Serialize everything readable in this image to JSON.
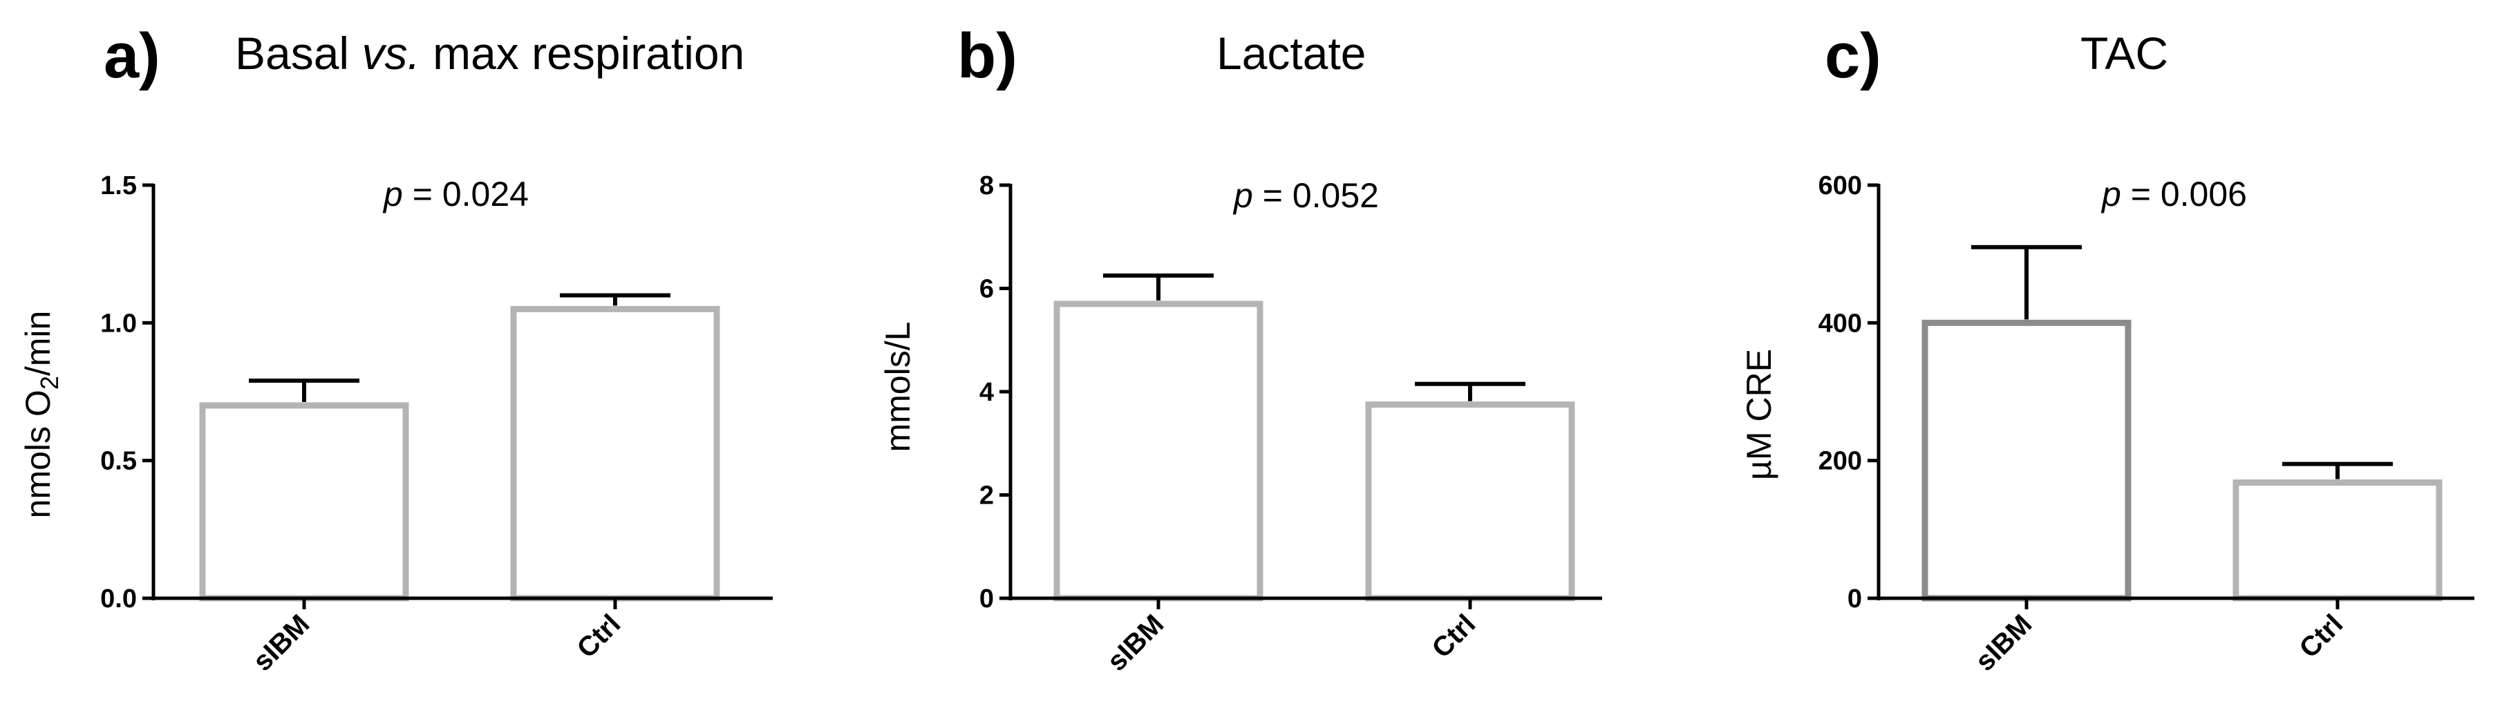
{
  "chart_data": [
    {
      "type": "bar",
      "panel": "a)",
      "title": "Basal vs. max respiration",
      "title_prefix": "Basal ",
      "title_italic": "vs.",
      "title_suffix": " max respiration",
      "ylabel": "nmols O2/min",
      "ylabel_main": "nmols O",
      "ylabel_sub": "2",
      "ylabel_tail": "/min",
      "ylim": [
        0,
        1.5
      ],
      "yticks": [
        0.0,
        0.5,
        1.0,
        1.5
      ],
      "ytick_labels": [
        "0.0",
        "0.5",
        "1.0",
        "1.5"
      ],
      "categories": [
        "sIBM",
        "Ctrl"
      ],
      "values": [
        0.7,
        1.05
      ],
      "error_upper": [
        0.09,
        0.05
      ],
      "bar_colors": [
        "#b4b4b4",
        "#b4b4b4"
      ],
      "annotation": "= 0.024",
      "annotation_symbol": "p"
    },
    {
      "type": "bar",
      "panel": "b)",
      "title": "Lactate",
      "ylabel": "mmols/L",
      "ylim": [
        0,
        8
      ],
      "yticks": [
        0,
        2,
        4,
        6,
        8
      ],
      "ytick_labels": [
        "0",
        "2",
        "4",
        "6",
        "8"
      ],
      "categories": [
        "sIBM",
        "Ctrl"
      ],
      "values": [
        5.7,
        3.75
      ],
      "error_upper": [
        0.55,
        0.4
      ],
      "bar_colors": [
        "#b4b4b4",
        "#b4b4b4"
      ],
      "annotation": "= 0.052",
      "annotation_symbol": "p"
    },
    {
      "type": "bar",
      "panel": "c)",
      "title": "TAC",
      "ylabel": "µM CRE",
      "ylim": [
        0,
        600
      ],
      "yticks": [
        0,
        200,
        400,
        600
      ],
      "ytick_labels": [
        "0",
        "200",
        "400",
        "600"
      ],
      "categories": [
        "sIBM",
        "Ctrl"
      ],
      "values": [
        400,
        168
      ],
      "error_upper": [
        110,
        27
      ],
      "bar_colors": [
        "#8c8c8c",
        "#b4b4b4"
      ],
      "annotation": "= 0.006",
      "annotation_symbol": "p"
    }
  ]
}
